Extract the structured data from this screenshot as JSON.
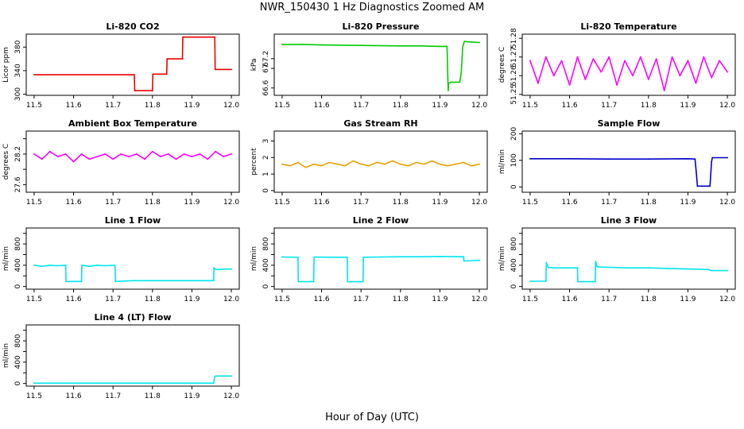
{
  "figure": {
    "title": "NWR_150430  1 Hz Diagnostics Zoomed AM",
    "xlabel": "Hour of Day (UTC)"
  },
  "chart_data": [
    {
      "type": "line",
      "title": "Li-820 CO2",
      "ylabel": "Licor ppm",
      "xlim": [
        11.48,
        12.02
      ],
      "ylim": [
        298,
        402
      ],
      "xticks": [
        11.5,
        11.6,
        11.7,
        11.8,
        11.9,
        12.0
      ],
      "yticks": [
        300,
        340,
        380
      ],
      "grid": false,
      "legend": "none",
      "series": [
        {
          "color": "#ee0000",
          "x": [
            11.5,
            11.754,
            11.755,
            11.8,
            11.801,
            11.836,
            11.837,
            11.876,
            11.877,
            11.958,
            11.959,
            12.0
          ],
          "y": [
            333,
            333,
            306,
            306,
            334,
            334,
            360,
            360,
            397,
            397,
            342,
            342
          ]
        }
      ]
    },
    {
      "type": "line",
      "title": "Li-820 Pressure",
      "ylabel": "kPa",
      "xlim": [
        11.48,
        12.02
      ],
      "ylim": [
        66.45,
        67.7
      ],
      "xticks": [
        11.5,
        11.6,
        11.7,
        11.8,
        11.9,
        12.0
      ],
      "yticks": [
        66.6,
        67.0,
        67.2
      ],
      "grid": false,
      "legend": "none",
      "series": [
        {
          "color": "#00cc00",
          "x": [
            11.5,
            11.55,
            11.6,
            11.7,
            11.8,
            11.85,
            11.9,
            11.918,
            11.92,
            11.921,
            11.922,
            11.93,
            11.95,
            11.954,
            11.958,
            11.962,
            11.98,
            12.0
          ],
          "y": [
            67.49,
            67.49,
            67.48,
            67.47,
            67.46,
            67.46,
            67.45,
            67.45,
            66.8,
            66.55,
            66.7,
            66.72,
            66.72,
            66.9,
            67.45,
            67.55,
            67.54,
            67.53
          ]
        }
      ]
    },
    {
      "type": "line",
      "title": "Li-820 Temperature",
      "ylabel": "degrees C",
      "xlim": [
        11.48,
        12.02
      ],
      "ylim": [
        51.2495,
        51.2822
      ],
      "xticks": [
        11.5,
        11.6,
        11.7,
        11.8,
        11.9,
        12.0
      ],
      "yticks": [
        51.25,
        51.26,
        51.27,
        51.28
      ],
      "ytick_labels": [
        "51.25",
        "51.26",
        "51.27",
        "51.28"
      ],
      "grid": false,
      "legend": "none",
      "series": [
        {
          "color": "#ff00ff",
          "x": [
            11.5,
            11.52,
            11.54,
            11.56,
            11.58,
            11.6,
            11.62,
            11.64,
            11.66,
            11.68,
            11.7,
            11.72,
            11.74,
            11.76,
            11.78,
            11.8,
            11.82,
            11.84,
            11.86,
            11.88,
            11.9,
            11.92,
            11.94,
            11.96,
            11.98,
            12.0
          ],
          "y": [
            51.268,
            51.256,
            51.27,
            51.26,
            51.268,
            51.255,
            51.27,
            51.258,
            51.269,
            51.262,
            51.27,
            51.255,
            51.268,
            51.26,
            51.27,
            51.258,
            51.269,
            51.252,
            51.27,
            51.26,
            51.268,
            51.256,
            51.27,
            51.259,
            51.268,
            51.262
          ]
        }
      ]
    },
    {
      "type": "line",
      "title": "Ambient Box Temperature",
      "ylabel": "degrees C",
      "xlim": [
        11.48,
        12.02
      ],
      "ylim": [
        27.45,
        28.65
      ],
      "xticks": [
        11.5,
        11.6,
        11.7,
        11.8,
        11.9,
        12.0
      ],
      "yticks": [
        27.6,
        27.9,
        28.2,
        28.5
      ],
      "ytick_labels": [
        "27.6",
        "",
        "28.2",
        ""
      ],
      "grid": false,
      "legend": "none",
      "series": [
        {
          "color": "#ff00ff",
          "x": [
            11.5,
            11.52,
            11.54,
            11.56,
            11.58,
            11.6,
            11.62,
            11.64,
            11.66,
            11.68,
            11.7,
            11.72,
            11.74,
            11.76,
            11.78,
            11.8,
            11.82,
            11.84,
            11.86,
            11.88,
            11.9,
            11.92,
            11.94,
            11.96,
            11.98,
            12.0
          ],
          "y": [
            28.2,
            28.1,
            28.25,
            28.15,
            28.2,
            28.05,
            28.2,
            28.1,
            28.15,
            28.2,
            28.1,
            28.2,
            28.15,
            28.2,
            28.1,
            28.25,
            28.15,
            28.2,
            28.1,
            28.2,
            28.15,
            28.2,
            28.1,
            28.25,
            28.15,
            28.2
          ]
        }
      ]
    },
    {
      "type": "line",
      "title": "Gas Stream RH",
      "ylabel": "percent",
      "xlim": [
        11.48,
        12.02
      ],
      "ylim": [
        -0.1,
        3.6
      ],
      "xticks": [
        11.5,
        11.6,
        11.7,
        11.8,
        11.9,
        12.0
      ],
      "yticks": [
        0,
        1,
        2,
        3
      ],
      "grid": false,
      "legend": "none",
      "series": [
        {
          "color": "#e6a000",
          "x": [
            11.5,
            11.52,
            11.54,
            11.56,
            11.58,
            11.6,
            11.62,
            11.64,
            11.66,
            11.68,
            11.7,
            11.72,
            11.74,
            11.76,
            11.78,
            11.8,
            11.82,
            11.84,
            11.86,
            11.88,
            11.9,
            11.92,
            11.94,
            11.96,
            11.98,
            12.0
          ],
          "y": [
            1.6,
            1.5,
            1.7,
            1.4,
            1.6,
            1.5,
            1.7,
            1.6,
            1.5,
            1.8,
            1.6,
            1.5,
            1.7,
            1.6,
            1.8,
            1.6,
            1.5,
            1.7,
            1.6,
            1.8,
            1.6,
            1.5,
            1.6,
            1.7,
            1.5,
            1.6
          ]
        }
      ]
    },
    {
      "type": "line",
      "title": "Sample Flow",
      "ylabel": "ml/min",
      "xlim": [
        11.48,
        12.02
      ],
      "ylim": [
        -20,
        210
      ],
      "xticks": [
        11.5,
        11.6,
        11.7,
        11.8,
        11.9,
        12.0
      ],
      "yticks": [
        0,
        100,
        200
      ],
      "grid": false,
      "legend": "none",
      "series": [
        {
          "color": "#0000cc",
          "x": [
            11.5,
            11.6,
            11.7,
            11.8,
            11.9,
            11.918,
            11.922,
            11.924,
            11.95,
            11.956,
            11.96,
            11.962,
            12.0
          ],
          "y": [
            106,
            106,
            105,
            105,
            106,
            105,
            40,
            3,
            3,
            3,
            95,
            110,
            110
          ]
        }
      ]
    },
    {
      "type": "line",
      "title": "Line 1 Flow",
      "ylabel": "ml/min",
      "xlim": [
        11.48,
        12.02
      ],
      "ylim": [
        -50,
        1100
      ],
      "xticks": [
        11.5,
        11.6,
        11.7,
        11.8,
        11.9,
        12.0
      ],
      "yticks": [
        0,
        200,
        400,
        600,
        800,
        1000
      ],
      "ytick_labels": [
        "0",
        "",
        "400",
        "",
        "800",
        ""
      ],
      "grid": false,
      "legend": "none",
      "series": [
        {
          "color": "#00e5ee",
          "x": [
            11.5,
            11.52,
            11.54,
            11.56,
            11.58,
            11.581,
            11.62,
            11.621,
            11.64,
            11.66,
            11.68,
            11.705,
            11.706,
            11.75,
            11.8,
            11.85,
            11.9,
            11.955,
            11.956,
            11.96,
            12.0
          ],
          "y": [
            400,
            380,
            400,
            390,
            400,
            95,
            95,
            400,
            380,
            400,
            390,
            400,
            95,
            110,
            110,
            110,
            110,
            110,
            350,
            320,
            330
          ]
        }
      ]
    },
    {
      "type": "line",
      "title": "Line 2 Flow",
      "ylabel": "ml/min",
      "xlim": [
        11.48,
        12.02
      ],
      "ylim": [
        -50,
        1100
      ],
      "xticks": [
        11.5,
        11.6,
        11.7,
        11.8,
        11.9,
        12.0
      ],
      "yticks": [
        0,
        200,
        400,
        600,
        800,
        1000
      ],
      "ytick_labels": [
        "0",
        "",
        "400",
        "",
        "800",
        ""
      ],
      "grid": false,
      "legend": "none",
      "series": [
        {
          "color": "#00e5ee",
          "x": [
            11.5,
            11.54,
            11.541,
            11.58,
            11.581,
            11.62,
            11.665,
            11.666,
            11.705,
            11.706,
            11.75,
            11.8,
            11.85,
            11.9,
            11.95,
            11.96,
            11.961,
            12.0
          ],
          "y": [
            555,
            550,
            90,
            90,
            555,
            550,
            550,
            90,
            90,
            550,
            555,
            560,
            560,
            565,
            560,
            560,
            480,
            490
          ]
        }
      ]
    },
    {
      "type": "line",
      "title": "Line 3 Flow",
      "ylabel": "ml/min",
      "xlim": [
        11.48,
        12.02
      ],
      "ylim": [
        -50,
        1100
      ],
      "xticks": [
        11.5,
        11.6,
        11.7,
        11.8,
        11.9,
        12.0
      ],
      "yticks": [
        0,
        200,
        400,
        600,
        800,
        1000
      ],
      "ytick_labels": [
        "0",
        "",
        "400",
        "",
        "800",
        ""
      ],
      "grid": false,
      "legend": "none",
      "series": [
        {
          "color": "#00e5ee",
          "x": [
            11.5,
            11.54,
            11.541,
            11.545,
            11.56,
            11.6,
            11.62,
            11.621,
            11.665,
            11.666,
            11.67,
            11.7,
            11.75,
            11.8,
            11.85,
            11.9,
            11.95,
            11.96,
            12.0
          ],
          "y": [
            100,
            100,
            450,
            360,
            350,
            350,
            350,
            90,
            90,
            470,
            370,
            360,
            350,
            350,
            340,
            330,
            320,
            300,
            300
          ]
        }
      ]
    },
    {
      "type": "line",
      "title": "Line 4 (LT) Flow",
      "ylabel": "ml/min",
      "xlim": [
        11.48,
        12.02
      ],
      "ylim": [
        -50,
        1100
      ],
      "xticks": [
        11.5,
        11.6,
        11.7,
        11.8,
        11.9,
        12.0
      ],
      "yticks": [
        0,
        200,
        400,
        600,
        800,
        1000
      ],
      "ytick_labels": [
        "0",
        "",
        "400",
        "",
        "800",
        ""
      ],
      "grid": false,
      "legend": "none",
      "series": [
        {
          "color": "#00e5ee",
          "x": [
            11.5,
            11.6,
            11.7,
            11.8,
            11.9,
            11.955,
            11.958,
            11.96,
            12.0
          ],
          "y": [
            5,
            5,
            5,
            5,
            5,
            5,
            130,
            140,
            140
          ]
        }
      ]
    }
  ]
}
